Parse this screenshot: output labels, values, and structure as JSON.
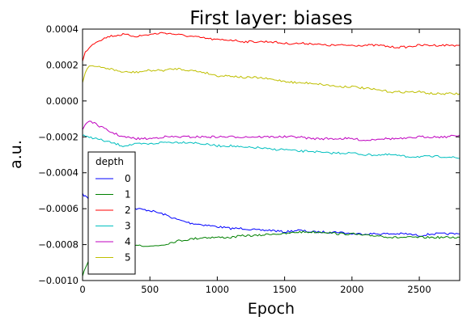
{
  "chart_data": {
    "type": "line",
    "title": "First layer: biases",
    "xlabel": "Epoch",
    "ylabel": "a.u.",
    "xlim": [
      0,
      2800
    ],
    "ylim": [
      -0.001,
      0.0004
    ],
    "xticks": [
      0,
      500,
      1000,
      1500,
      2000,
      2500
    ],
    "xtick_labels": [
      "0",
      "500",
      "1000",
      "1500",
      "2000",
      "2500"
    ],
    "yticks": [
      0.0004,
      0.0002,
      0.0,
      -0.0002,
      -0.0004,
      -0.0006,
      -0.0008,
      -0.001
    ],
    "ytick_labels": [
      "0.0004",
      "0.0002",
      "0.0000",
      "−0.0002",
      "−0.0004",
      "−0.0006",
      "−0.0008",
      "−0.0010"
    ],
    "grid": false,
    "legend": {
      "title": "depth",
      "placement": "lower-left"
    },
    "series": [
      {
        "name": "0",
        "color": "#0000ff",
        "x": [
          0,
          20,
          50,
          100,
          200,
          300,
          400,
          500,
          600,
          700,
          800,
          900,
          1000,
          1100,
          1200,
          1300,
          1400,
          1500,
          1600,
          1700,
          1800,
          1900,
          2000,
          2100,
          2200,
          2300,
          2400,
          2500,
          2600,
          2700,
          2800
        ],
        "y": [
          -0.00052,
          -0.00053,
          -0.00055,
          -0.00056,
          -0.00058,
          -0.00059,
          -0.0006,
          -0.00061,
          -0.00063,
          -0.00066,
          -0.00068,
          -0.00069,
          -0.0007,
          -0.00071,
          -0.00071,
          -0.00072,
          -0.00072,
          -0.00073,
          -0.00072,
          -0.00073,
          -0.00073,
          -0.00073,
          -0.00074,
          -0.00074,
          -0.00074,
          -0.00074,
          -0.00074,
          -0.00075,
          -0.00074,
          -0.00074,
          -0.00074
        ]
      },
      {
        "name": "1",
        "color": "#008000",
        "x": [
          0,
          20,
          50,
          100,
          200,
          300,
          400,
          500,
          600,
          700,
          800,
          900,
          1000,
          1100,
          1200,
          1300,
          1400,
          1500,
          1600,
          1700,
          1800,
          1900,
          2000,
          2100,
          2200,
          2300,
          2400,
          2500,
          2600,
          2700,
          2800
        ],
        "y": [
          -0.00097,
          -0.00093,
          -0.00088,
          -0.00084,
          -0.00081,
          -0.0008,
          -0.0008,
          -0.00081,
          -0.0008,
          -0.00078,
          -0.00077,
          -0.00076,
          -0.00076,
          -0.00076,
          -0.00075,
          -0.00075,
          -0.00074,
          -0.00074,
          -0.00073,
          -0.00073,
          -0.00073,
          -0.00074,
          -0.00074,
          -0.00075,
          -0.00075,
          -0.00076,
          -0.00076,
          -0.00076,
          -0.00076,
          -0.00076,
          -0.00076
        ]
      },
      {
        "name": "2",
        "color": "#ff0000",
        "x": [
          0,
          20,
          50,
          100,
          200,
          300,
          400,
          500,
          600,
          700,
          800,
          900,
          1000,
          1100,
          1200,
          1300,
          1400,
          1500,
          1600,
          1700,
          1800,
          1900,
          2000,
          2100,
          2200,
          2300,
          2400,
          2500,
          2600,
          2700,
          2800
        ],
        "y": [
          0.00022,
          0.00027,
          0.0003,
          0.00033,
          0.00036,
          0.00037,
          0.00036,
          0.00037,
          0.00038,
          0.00037,
          0.00036,
          0.00035,
          0.00034,
          0.00034,
          0.00033,
          0.00033,
          0.00033,
          0.00032,
          0.00032,
          0.00032,
          0.00031,
          0.00031,
          0.00031,
          0.00031,
          0.00031,
          0.0003,
          0.0003,
          0.00031,
          0.00031,
          0.00031,
          0.00031
        ]
      },
      {
        "name": "3",
        "color": "#00bfbf",
        "x": [
          0,
          20,
          50,
          100,
          200,
          300,
          400,
          500,
          600,
          700,
          800,
          900,
          1000,
          1100,
          1200,
          1300,
          1400,
          1500,
          1600,
          1700,
          1800,
          1900,
          2000,
          2100,
          2200,
          2300,
          2400,
          2500,
          2600,
          2700,
          2800
        ],
        "y": [
          -0.00019,
          -0.0002,
          -0.0002,
          -0.00021,
          -0.00023,
          -0.00025,
          -0.00024,
          -0.00024,
          -0.00023,
          -0.00023,
          -0.00023,
          -0.00024,
          -0.00025,
          -0.00025,
          -0.00026,
          -0.00026,
          -0.00027,
          -0.00027,
          -0.00028,
          -0.00028,
          -0.00029,
          -0.00029,
          -0.00029,
          -0.0003,
          -0.0003,
          -0.0003,
          -0.00031,
          -0.00031,
          -0.00031,
          -0.00031,
          -0.00032
        ]
      },
      {
        "name": "4",
        "color": "#bf00bf",
        "x": [
          0,
          20,
          50,
          100,
          200,
          300,
          400,
          500,
          600,
          700,
          800,
          900,
          1000,
          1100,
          1200,
          1300,
          1400,
          1500,
          1600,
          1700,
          1800,
          1900,
          2000,
          2100,
          2200,
          2300,
          2400,
          2500,
          2600,
          2700,
          2800
        ],
        "y": [
          -0.00016,
          -0.00013,
          -0.00011,
          -0.00013,
          -0.00017,
          -0.0002,
          -0.00021,
          -0.00021,
          -0.0002,
          -0.0002,
          -0.0002,
          -0.0002,
          -0.0002,
          -0.0002,
          -0.0002,
          -0.0002,
          -0.0002,
          -0.0002,
          -0.0002,
          -0.00021,
          -0.00021,
          -0.00021,
          -0.00021,
          -0.00022,
          -0.00021,
          -0.00021,
          -0.00021,
          -0.0002,
          -0.0002,
          -0.0002,
          -0.00019
        ]
      },
      {
        "name": "5",
        "color": "#bfbf00",
        "x": [
          0,
          20,
          50,
          100,
          200,
          300,
          400,
          500,
          600,
          700,
          800,
          900,
          1000,
          1100,
          1200,
          1300,
          1400,
          1500,
          1600,
          1700,
          1800,
          1900,
          2000,
          2100,
          2200,
          2300,
          2400,
          2500,
          2600,
          2700,
          2800
        ],
        "y": [
          0.0001,
          0.00016,
          0.0002,
          0.00019,
          0.00018,
          0.00016,
          0.00016,
          0.00017,
          0.00017,
          0.00018,
          0.00017,
          0.00016,
          0.00014,
          0.00014,
          0.00013,
          0.00013,
          0.00012,
          0.00011,
          0.0001,
          0.0001,
          9e-05,
          8e-05,
          8e-05,
          7e-05,
          6e-05,
          5e-05,
          5e-05,
          5e-05,
          4e-05,
          4e-05,
          4e-05
        ]
      }
    ]
  }
}
